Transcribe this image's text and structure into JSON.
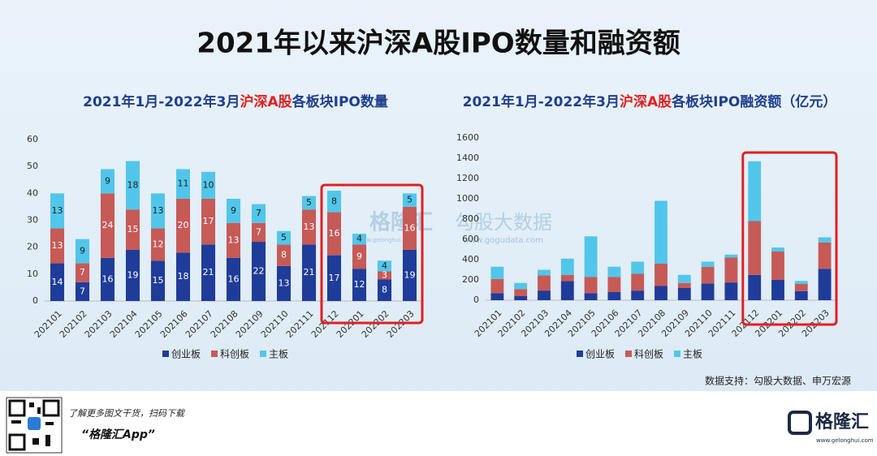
{
  "header": {
    "title": "2021年以来沪深A股IPO数量和融资额"
  },
  "chart_data": [
    {
      "type": "bar",
      "stacked": true,
      "title_parts": [
        "2021年1月-2022年3月",
        "沪深A股",
        "各板块IPO数量"
      ],
      "categories": [
        "202101",
        "202102",
        "202103",
        "202104",
        "202105",
        "202106",
        "202107",
        "202108",
        "202109",
        "202110",
        "202111",
        "202112",
        "202201",
        "202202",
        "202203"
      ],
      "series": [
        {
          "name": "创业板",
          "color": "#1f3c99",
          "values": [
            14,
            7,
            16,
            19,
            15,
            18,
            21,
            16,
            22,
            13,
            21,
            17,
            12,
            8,
            19
          ]
        },
        {
          "name": "科创板",
          "color": "#c65a57",
          "values": [
            13,
            7,
            24,
            15,
            12,
            20,
            17,
            13,
            7,
            8,
            13,
            16,
            9,
            3,
            16
          ]
        },
        {
          "name": "主板",
          "color": "#52c6ea",
          "values": [
            13,
            9,
            9,
            18,
            13,
            11,
            10,
            9,
            7,
            5,
            5,
            8,
            4,
            4,
            5
          ]
        }
      ],
      "ylim": [
        0,
        60
      ],
      "yticks": [
        0,
        10,
        20,
        30,
        40,
        50,
        60
      ],
      "data_labels": true
    },
    {
      "type": "bar",
      "stacked": true,
      "title_parts": [
        "2021年1月-2022年3月",
        "沪深A股",
        "各板块IPO融资额（亿元）"
      ],
      "categories": [
        "202101",
        "202102",
        "202103",
        "202104",
        "202105",
        "202106",
        "202107",
        "202108",
        "202109",
        "202110",
        "202111",
        "202112",
        "202201",
        "202202",
        "202203"
      ],
      "series": [
        {
          "name": "创业板",
          "color": "#1f3c99",
          "values": [
            70,
            40,
            95,
            190,
            70,
            80,
            95,
            140,
            120,
            165,
            175,
            250,
            200,
            90,
            310
          ]
        },
        {
          "name": "科创板",
          "color": "#c65a57",
          "values": [
            140,
            70,
            150,
            60,
            160,
            150,
            165,
            220,
            50,
            165,
            245,
            530,
            280,
            70,
            260
          ]
        },
        {
          "name": "主板",
          "color": "#52c6ea",
          "values": [
            120,
            60,
            55,
            160,
            400,
            100,
            120,
            620,
            80,
            50,
            30,
            590,
            40,
            30,
            50
          ]
        }
      ],
      "ylim": [
        0,
        1600
      ],
      "yticks": [
        0,
        200,
        400,
        600,
        800,
        1000,
        1200,
        1400,
        1600
      ],
      "data_labels": false
    }
  ],
  "watermark": {
    "brand": "格隆汇",
    "site": "www.gelonghui.com",
    "data_brand": "勾股大数据",
    "data_site": "www.gogudata.com"
  },
  "source": "数据支持：勾股大数据、申万宏源",
  "footer": {
    "tagline": "了解更多图文干货，扫码下载",
    "app": "“格隆汇App”",
    "logo": "格隆汇",
    "site": "www.gelonghui.com"
  }
}
